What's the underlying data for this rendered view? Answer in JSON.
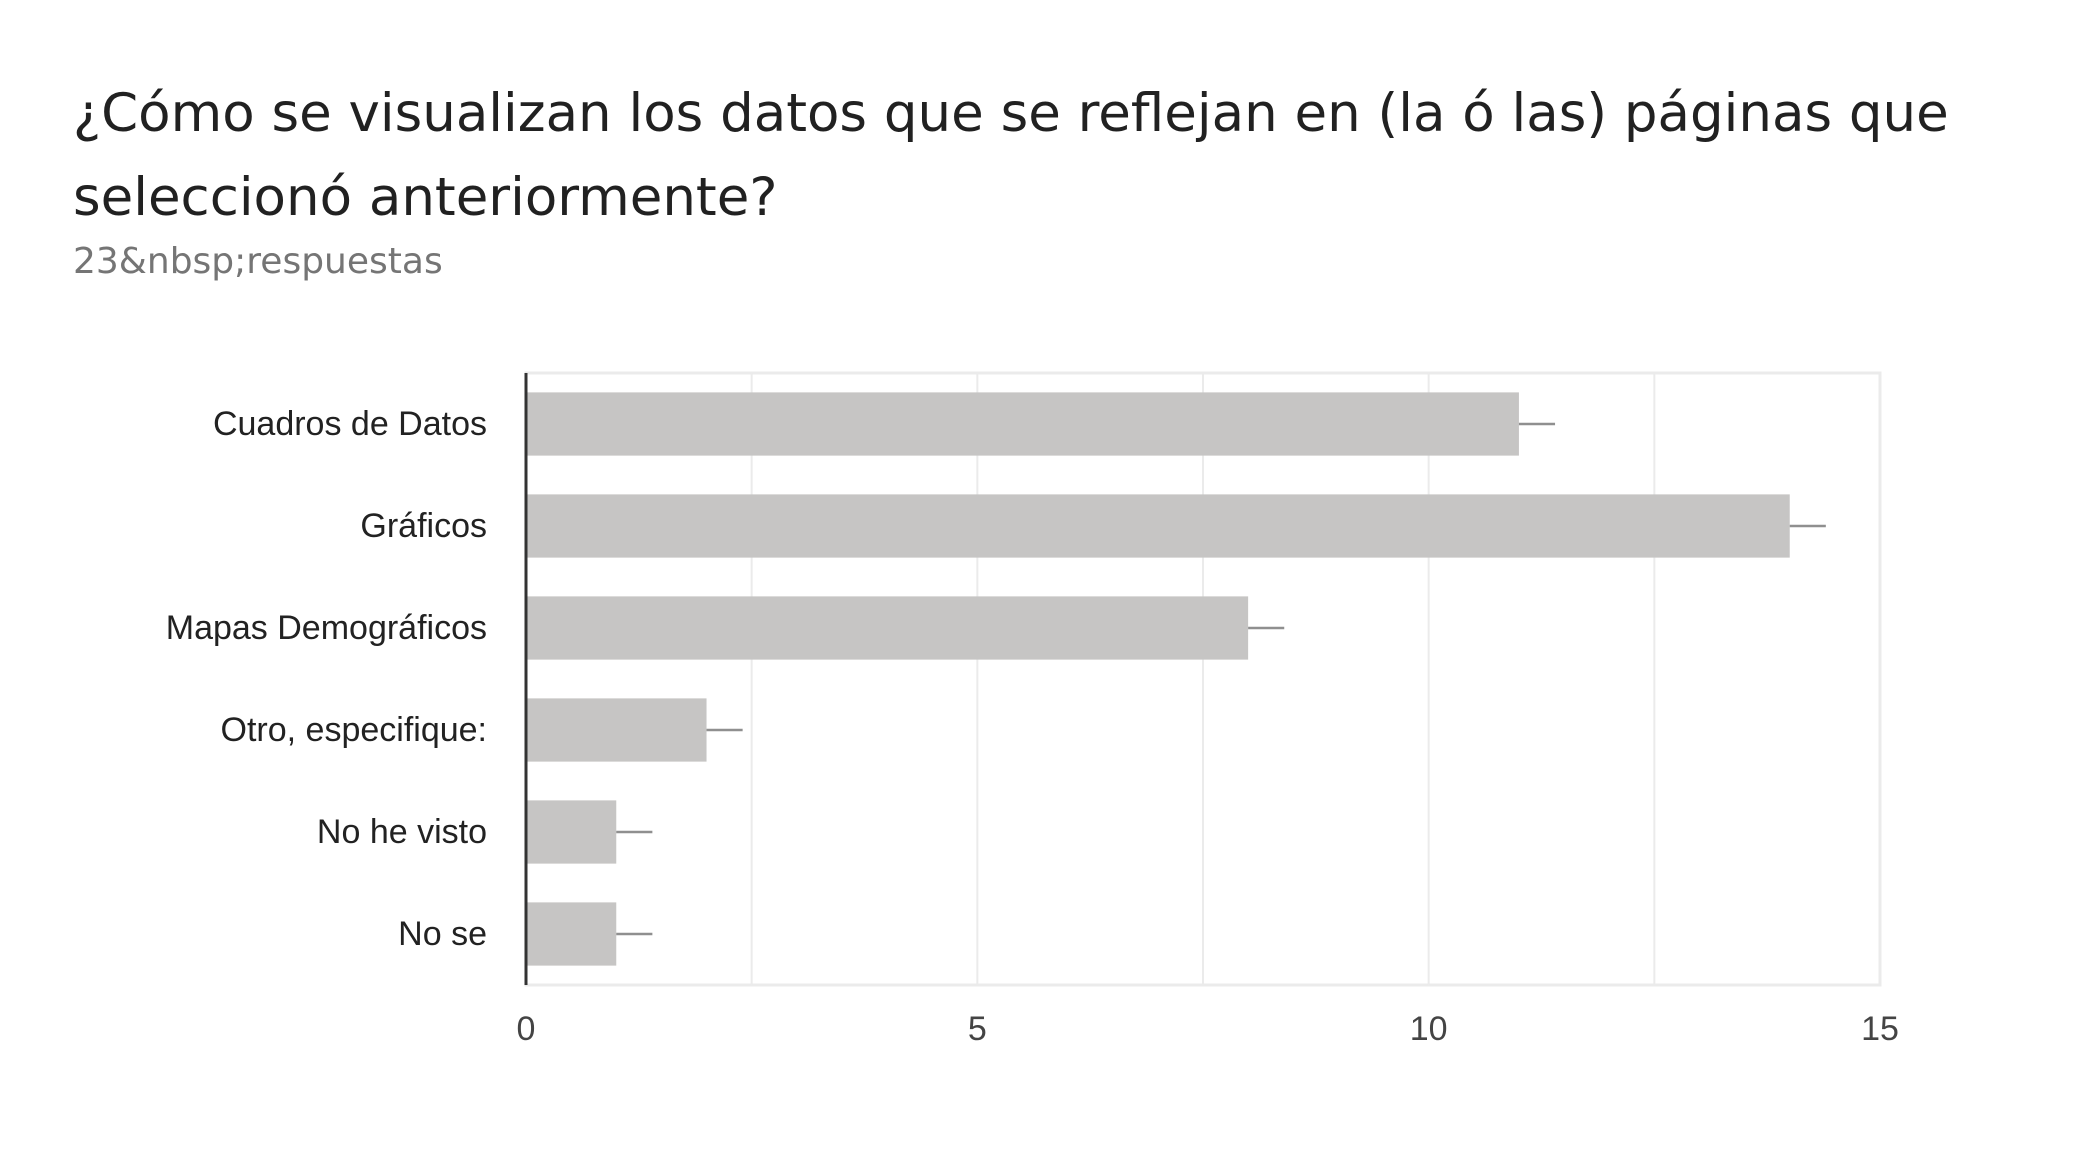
{
  "header": {
    "title": "¿Cómo se visualizan los datos que se reflejan en (la ó las) páginas que seleccionó anteriormente?",
    "responses": "23&nbsp;respuestas"
  },
  "colors": {
    "bar": "#c6c5c4",
    "error_bar": "#8f8f8f",
    "grid": "#ebebeb",
    "axis": "#333333",
    "label": "#222222",
    "tick": "#444444"
  },
  "chart_data": {
    "type": "bar",
    "orientation": "horizontal",
    "categories": [
      "Cuadros de Datos",
      "Gráficos",
      "Mapas Demográficos",
      "Otro, especifique:",
      "No he visto",
      "No se"
    ],
    "values": [
      11,
      14,
      8,
      2,
      1,
      1
    ],
    "error_bar_max": [
      11.4,
      14.4,
      8.4,
      2.4,
      1.4,
      1.4
    ],
    "xlim": [
      0,
      15
    ],
    "xticks": [
      0,
      5,
      10,
      15
    ],
    "xtick_labels": [
      "0",
      "5",
      "10",
      "15"
    ],
    "grid": true,
    "legend": "none",
    "title": "¿Cómo se visualizan los datos que se reflejan en (la ó las) páginas que seleccionó anteriormente?",
    "xlabel": "",
    "ylabel": ""
  }
}
